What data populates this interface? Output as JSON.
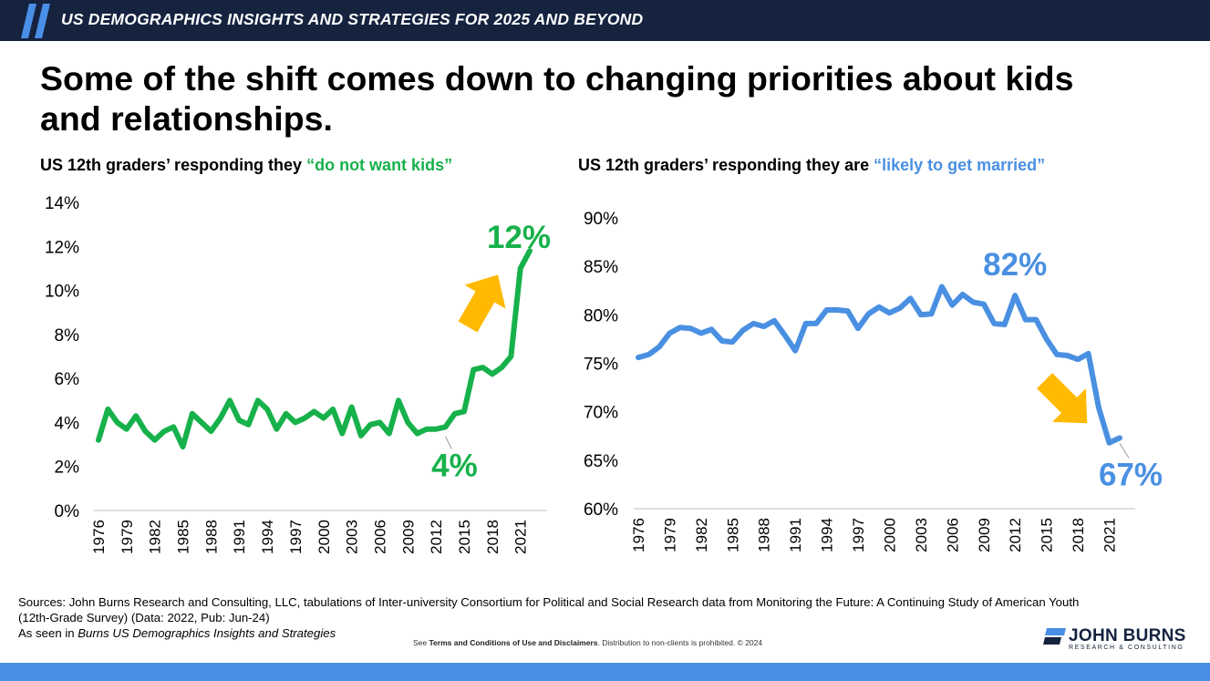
{
  "header": {
    "title": "US DEMOGRAPHICS INSIGHTS AND STRATEGIES FOR 2025 AND BEYOND"
  },
  "headline": "Some of the shift comes down to changing priorities about kids and relationships.",
  "colors": {
    "navy": "#15233f",
    "green": "#17b14b",
    "blue": "#4a90e2",
    "arrow": "#ffb900",
    "footer": "#4a8fe7"
  },
  "left_subtitle": {
    "prefix": "US 12th graders’ responding they ",
    "highlight": "“do not want kids”"
  },
  "right_subtitle": {
    "prefix": "US 12th graders’ responding they are ",
    "highlight": "“likely to get married”"
  },
  "chart_data": [
    {
      "type": "line",
      "subtitle": "US 12th graders’ responding they “do not want kids”",
      "x": [
        1976,
        1977,
        1978,
        1979,
        1980,
        1981,
        1982,
        1983,
        1984,
        1985,
        1986,
        1987,
        1988,
        1989,
        1990,
        1991,
        1992,
        1993,
        1994,
        1995,
        1996,
        1997,
        1998,
        1999,
        2000,
        2001,
        2002,
        2003,
        2004,
        2005,
        2006,
        2007,
        2008,
        2009,
        2010,
        2011,
        2012,
        2013,
        2014,
        2015,
        2016,
        2017,
        2018,
        2019,
        2020,
        2021,
        2022
      ],
      "series": [
        {
          "values": [
            3.2,
            4.6,
            4.0,
            3.7,
            4.3,
            3.6,
            3.2,
            3.6,
            3.8,
            2.9,
            4.4,
            4.0,
            3.6,
            4.2,
            5.0,
            4.1,
            3.9,
            5.0,
            4.6,
            3.7,
            4.4,
            4.0,
            4.2,
            4.5,
            4.2,
            4.6,
            3.5,
            4.7,
            3.4,
            3.9,
            4.0,
            3.5,
            5.0,
            4.0,
            3.5,
            3.7,
            3.7,
            3.8,
            4.4,
            4.5,
            6.4,
            6.5,
            6.2,
            6.5,
            7.0,
            11.0,
            11.8
          ]
        }
      ],
      "x_tick_labels": [
        "1976",
        "1979",
        "1982",
        "1985",
        "1988",
        "1991",
        "1994",
        "1997",
        "2000",
        "2003",
        "2006",
        "2009",
        "2012",
        "2015",
        "2018",
        "2021"
      ],
      "y_tick_labels": [
        "0%",
        "2%",
        "4%",
        "6%",
        "8%",
        "10%",
        "12%",
        "14%"
      ],
      "ylim": [
        0,
        14
      ],
      "annotations": [
        {
          "text": "4%",
          "x": 2013,
          "y": 3.7
        },
        {
          "text": "12%",
          "x": 2022,
          "y": 11.8
        }
      ]
    },
    {
      "type": "line",
      "subtitle": "US 12th graders’ responding they are “likely to get married”",
      "x": [
        1976,
        1977,
        1978,
        1979,
        1980,
        1981,
        1982,
        1983,
        1984,
        1985,
        1986,
        1987,
        1988,
        1989,
        1990,
        1991,
        1992,
        1993,
        1994,
        1995,
        1996,
        1997,
        1998,
        1999,
        2000,
        2001,
        2002,
        2003,
        2004,
        2005,
        2006,
        2007,
        2008,
        2009,
        2010,
        2011,
        2012,
        2013,
        2014,
        2015,
        2016,
        2017,
        2018,
        2019,
        2020,
        2021,
        2022
      ],
      "series": [
        {
          "values": [
            75.6,
            75.9,
            76.7,
            78.1,
            78.7,
            78.6,
            78.1,
            78.5,
            77.3,
            77.2,
            78.4,
            79.1,
            78.8,
            79.4,
            77.9,
            76.3,
            79.1,
            79.1,
            80.5,
            80.5,
            80.4,
            78.6,
            80.1,
            80.8,
            80.2,
            80.7,
            81.7,
            80.0,
            80.1,
            82.9,
            81.0,
            82.1,
            81.3,
            81.1,
            79.1,
            79.0,
            82.0,
            79.5,
            79.5,
            77.5,
            75.9,
            75.8,
            75.4,
            76.0,
            70.4,
            66.8,
            67.3
          ]
        }
      ],
      "x_tick_labels": [
        "1976",
        "1979",
        "1982",
        "1985",
        "1988",
        "1991",
        "1994",
        "1997",
        "2000",
        "2003",
        "2006",
        "2009",
        "2012",
        "2015",
        "2018",
        "2021"
      ],
      "y_tick_labels": [
        "60%",
        "65%",
        "70%",
        "75%",
        "80%",
        "85%",
        "90%"
      ],
      "ylim": [
        60,
        90
      ],
      "annotations": [
        {
          "text": "82%",
          "x": 2012,
          "y": 82.0
        },
        {
          "text": "67%",
          "x": 2022,
          "y": 67.3
        }
      ]
    }
  ],
  "sources": {
    "line1": "Sources: John Burns Research and Consulting, LLC, tabulations of Inter-university Consortium for Political and Social Research data from Monitoring the Future: A Continuing Study of American Youth (12th-Grade Survey) (Data: 2022, Pub: Jun-24)",
    "line2_prefix": "As seen in ",
    "line2_italic": "Burns US Demographics Insights and Strategies"
  },
  "terms": {
    "prefix": "See ",
    "bold": "Terms and Conditions of Use and Disclaimers",
    "suffix": ". Distribution to non-clients is prohibited. © 2024"
  },
  "logo": {
    "name": "JOHN BURNS",
    "sub": "RESEARCH & CONSULTING"
  }
}
